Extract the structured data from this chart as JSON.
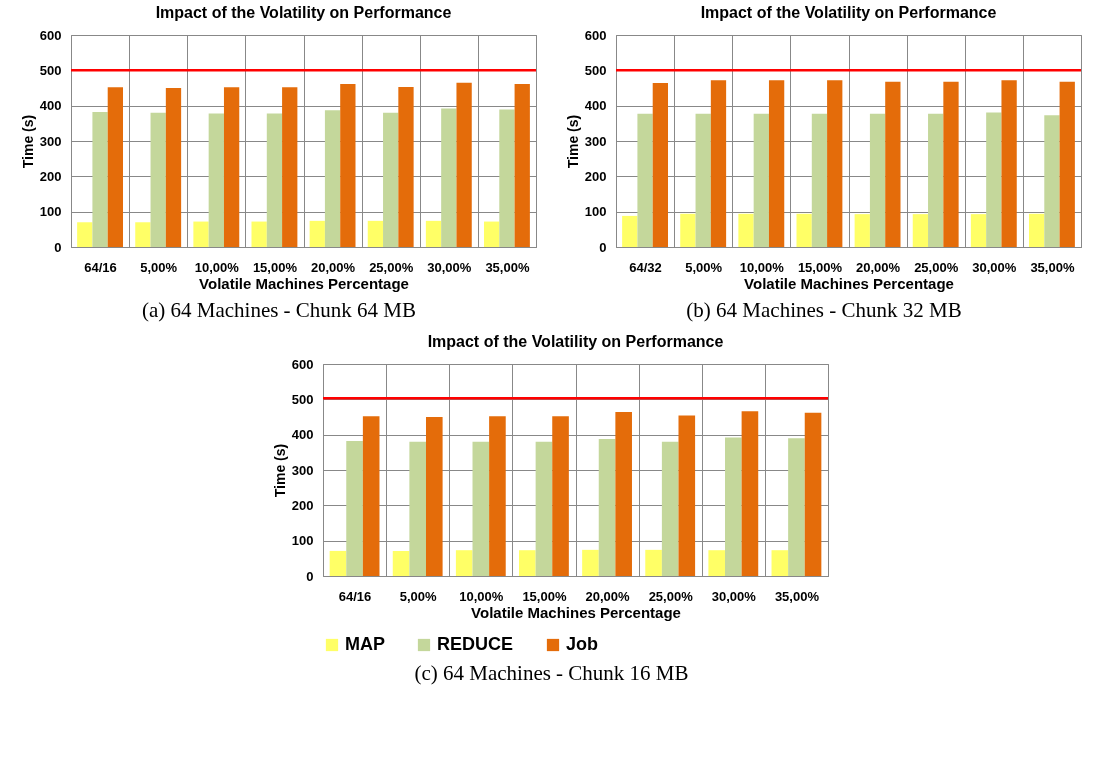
{
  "chart_data": [
    {
      "type": "bar",
      "title": "Impact of the Volatility on Performance",
      "xlabel": "Volatile Machines Percentage",
      "ylabel": "Time (s)",
      "categories": [
        "64/16",
        "5,00%",
        "10,00%",
        "15,00%",
        "20,00%",
        "25,00%",
        "30,00%",
        "35,00%"
      ],
      "series": [
        {
          "color": "#ffff66",
          "values": [
            70,
            70,
            72,
            72,
            74,
            74,
            74,
            72
          ]
        },
        {
          "color": "#c4d79b",
          "values": [
            382,
            380,
            378,
            378,
            387,
            380,
            392,
            389
          ]
        },
        {
          "color": "#e46c0a",
          "values": [
            452,
            450,
            452,
            452,
            461,
            453,
            465,
            461
          ]
        }
      ],
      "ylim": [
        0,
        600
      ],
      "yticks": [
        0,
        100,
        200,
        300,
        400,
        500,
        600
      ],
      "grid": true,
      "legend": false,
      "ref_lines": [
        {
          "axis": "y",
          "value": 500,
          "color": "#ff0000"
        }
      ],
      "annotations": [
        "(a) 64 Machines - Chunk 64 MB"
      ]
    },
    {
      "type": "bar",
      "title": "Impact of the Volatility on Performance",
      "xlabel": "Volatile Machines Percentage",
      "ylabel": "Time (s)",
      "categories": [
        "64/32",
        "5,00%",
        "10,00%",
        "15,00%",
        "20,00%",
        "25,00%",
        "30,00%",
        "35,00%"
      ],
      "series": [
        {
          "color": "#ffff66",
          "values": [
            88,
            94,
            94,
            94,
            93,
            93,
            93,
            94
          ]
        },
        {
          "color": "#c4d79b",
          "values": [
            377,
            377,
            377,
            377,
            377,
            377,
            381,
            373
          ]
        },
        {
          "color": "#e46c0a",
          "values": [
            464,
            472,
            472,
            472,
            468,
            468,
            472,
            468
          ]
        }
      ],
      "ylim": [
        0,
        600
      ],
      "yticks": [
        0,
        100,
        200,
        300,
        400,
        500,
        600
      ],
      "grid": true,
      "legend": false,
      "ref_lines": [
        {
          "axis": "y",
          "value": 500,
          "color": "#ff0000"
        }
      ],
      "annotations": [
        "(b) 64 Machines - Chunk 32 MB"
      ]
    },
    {
      "type": "bar",
      "title": "Impact of the Volatility on Performance",
      "xlabel": "Volatile Machines Percentage",
      "ylabel": "Time (s)",
      "categories": [
        "64/16",
        "5,00%",
        "10,00%",
        "15,00%",
        "20,00%",
        "25,00%",
        "30,00%",
        "35,00%"
      ],
      "series": [
        {
          "name": "MAP",
          "color": "#ffff66",
          "values": [
            71,
            71,
            73,
            73,
            74,
            74,
            73,
            73
          ]
        },
        {
          "name": "REDUCE",
          "color": "#c4d79b",
          "values": [
            382,
            380,
            380,
            380,
            388,
            380,
            392,
            390
          ]
        },
        {
          "name": "Job",
          "color": "#e46c0a",
          "values": [
            452,
            450,
            452,
            452,
            464,
            454,
            466,
            462
          ]
        }
      ],
      "ylim": [
        0,
        600
      ],
      "yticks": [
        0,
        100,
        200,
        300,
        400,
        500,
        600
      ],
      "grid": true,
      "legend": "bottom",
      "ref_lines": [
        {
          "axis": "y",
          "value": 503,
          "color": "#ff0000"
        }
      ],
      "annotations": [
        "(c) 64 Machines - Chunk 16 MB"
      ]
    }
  ]
}
